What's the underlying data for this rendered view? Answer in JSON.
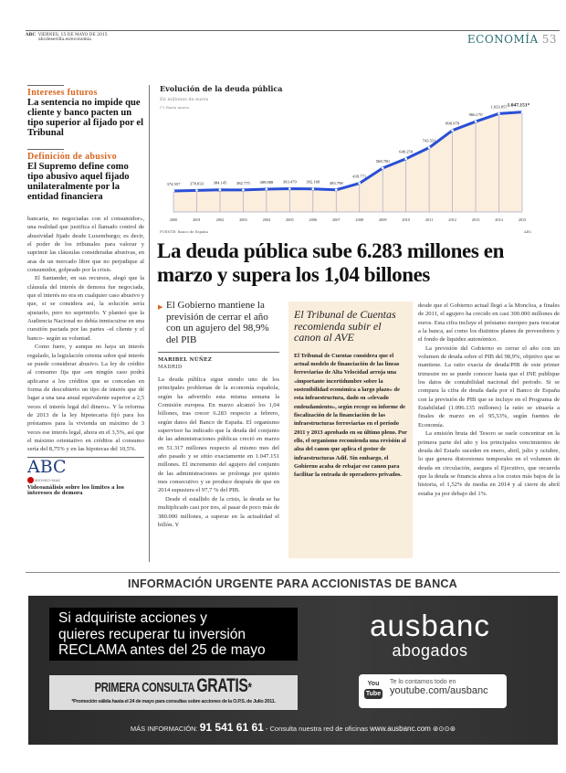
{
  "header": {
    "paper": "ABC",
    "date": "VIERNES, 15 DE MAYO DE 2015",
    "url": "abcdesevilla.es/economia",
    "section": "ECONOMÍA",
    "page": "53"
  },
  "sidebar_left": {
    "items": [
      {
        "kicker": "Intereses futuros",
        "headline": "La sentencia no impide que cliente y banco pacten un tipo superior al fijado por el Tribunal"
      },
      {
        "kicker": "Definición de abusivo",
        "headline": "El Supremo define como tipo abusivo aquel fijado unilateralmente por la entidad financiera"
      }
    ],
    "body": [
      "bancaria, no negociadas con el consumidor», una realidad que justifica el llamado control de abusividad fijado desde Luxemburgo; es decir, el poder de los tribunales para valorar y suprimir las cláusulas consideradas abusivas, en aras de un mercado libre que no perjudique al consumidor, golpeado por la crisis.",
      "El Santander, en sus recursos, alegó que la cláusula del interés de demora fue negociada, que el interés no era en cualquier caso abusivo y que, si se considera así, la solución sería ajustarlo, pero no suprimirlo. Y planteó que la Audiencia Nacional no debía inmiscuirse en una cuestión pactada por las partes –el cliente y el banco– según su voluntad.",
      "Como fuere, y aunque no haya un interés regulado, la legislación orienta sobre qué interés se puede considerar abusivo. La ley de crédito al consumo fija que «en ningún caso podrá aplicarse a los créditos que se concedan en forma de descubierto un tipo de interés que dé lugar a una tasa anual equivalente superior a 2,5 veces el interés legal del dinero». Y la reforma de 2013 de la ley hipotecaria fijó para los préstamos para la vivienda un máximo de 3 veces ese interés legal, ahora en el 3,5%, así que el máximo orientativo en créditos al consumo sería del 8,75% y en las hipotecas del 10,5%."
    ],
    "video": {
      "logo": "ABC",
      "badge": "KIOSKO·MAS",
      "caption": "Videoanálisis sobre los límites a los intereses de demora"
    }
  },
  "chart_data": {
    "type": "area",
    "title": "Evolución de la deuda pública",
    "subtitle": "En millones de euros",
    "note": "(*) Hasta marzo",
    "source": "FUENTE: Banco de España",
    "credit": "ABC",
    "categories": [
      "2000",
      "2001",
      "2002",
      "2003",
      "2004",
      "2005",
      "2006",
      "2007",
      "2008",
      "2009",
      "2010",
      "2011",
      "2012",
      "2013",
      "2014",
      "2015"
    ],
    "values": [
      374557,
      378833,
      384145,
      382775,
      389888,
      393479,
      392168,
      383798,
      439771,
      568700,
      649259,
      743531,
      890978,
      966170,
      1033857,
      1047151
    ],
    "labels": [
      "374.557",
      "378.833",
      "384.145",
      "382.775",
      "389.888",
      "393.479",
      "392.168",
      "383.798",
      "439.771",
      "568.700",
      "649.259",
      "743.531",
      "890.978",
      "966.170",
      "1.033.857",
      "1.047.151*"
    ],
    "line_color": "#2a4fd6",
    "fill_color": "#fbeedd",
    "grid": false
  },
  "article": {
    "headline": "La deuda pública sube 6.283 millones en marzo y supera los 1,04 billones",
    "subhead": "El Gobierno mantiene la previsión de cerrar el año con un agujero del 98,9% del PIB",
    "author": "MARIBEL NÚÑEZ",
    "place": "MADRID",
    "col1": [
      "La deuda pública sigue siendo uno de los principales problemas de la economía española, según ha advertido esta misma semana la Comisión europea. En marzo alcanzó los 1,04 billones, tras crecer 6.283 respecto a febrero, según datos del Banco de España. El organismo supervisor ha indicado que la deuda del conjunto de las administraciones públicas creció en marzo en 51.317 millones respecto al mismo mes del año pasado y se sitúo exactamente en 1.047.151 millones. El incremento del agujero del conjunto de las administraciones se prolonga por quinto mes consecutivo y se produce después de que en 2014 supusiera el 97,7 % del PIB.",
      "Desde el estallido de la crisis, la deuda se ha multiplicado casi por tres, al pasar de poco más de 380.000 millones, a superar en la actualidad el billón. Y"
    ],
    "col2": [
      "desde que el Gobierno actual llegó a la Moncloa, a finales de 2011, el agujero ha crecido en casi 300.000 millones de euros. Esta cifra incluye el préstamo europeo para rescatar a la banca, así como los distintos planes de proveedores y el fondo de liquidez autonómico.",
      "La previsión del Gobierno es cerrar el año con un volumen de deuda sobre el PIB del 98,9%, objetivo que se mantiene. La ratio exacta de deuda/PIB de este primer trimestre no se puede conocer hasta que el INE publique los datos de contabilidad nacional del periodo. Si se compara la cifra de deuda dada por el Banco de España con la previsión de PIB que se incluye en el Programa de Estabilidad (1.096.135 millones) la ratio se situaría a finales de marzo en el 95,53%, según fuentes de Economía.",
      "La emisión bruta del Tesoro se suele concentrar en la primera parte del año y los principales vencimientos de deuda del Estado suceden en enero, abril, julio y octubre, lo que genera distorsiones temporales en el volumen de deuda en circulación, asegura el Ejecutivo, que recuerda que la deuda se financia ahora a los costes más bajos de la historia, el 1,52% de media en 2014 y al cierre de abril estaba ya por debajo del 1%."
    ]
  },
  "box": {
    "title": "El Tribunal de Cuentas recomienda subir el canon al AVE",
    "body": "El Tribunal de Cuentas considera que el actual modelo de financiación de las líneas ferroviarias de Alta Velocidad arroja una «importante incertidumbre sobre la sostenibilidad económica a largo plazo» de esta infraestructura, dado su «elevado endeudamiento», según recoge su informe de fiscalización de la financiación de las infraestructuras ferroviarias en el periodo 2011 y 2013 aprobado en su último pleno. Por ello, el organismo recomienda una revisión al alza del canon que aplica el gestor de infraestructuras Adif. Sin embargo, el Gobierno acaba de rebajar ese canon para facilitar la entrada de operadores privados."
  },
  "ad": {
    "header": "INFORMACIÓN URGENTE PARA ACCIONISTAS DE BANCA",
    "line1": "Si adquiriste acciones y",
    "line2": "quieres recuperar tu inversión",
    "line3": "RECLAMA antes del 25 de mayo",
    "promo_a": "PRIMERA CONSULTA ",
    "promo_b": "GRATIS",
    "promo_star": "*",
    "promo_note": "*Promoción válida hasta el 24 de mayo para consultas sobre acciones de la O.P.S. de Julio 2011.",
    "brand": "ausbanc",
    "brand_sub": "abogados",
    "yt_you": "You",
    "yt_tube": "Tube",
    "yt_text": "Te lo contamos todo en",
    "yt_url": "youtube.com/ausbanc",
    "foot_label": "MÁS INFORMACIÓN: ",
    "foot_phone": "91 541 61 61",
    "foot_text": " - Consulta nuestra red de oficinas ",
    "foot_url": "www.ausbanc.com",
    "foot_icons": "⊛⊙⊙⊛"
  }
}
